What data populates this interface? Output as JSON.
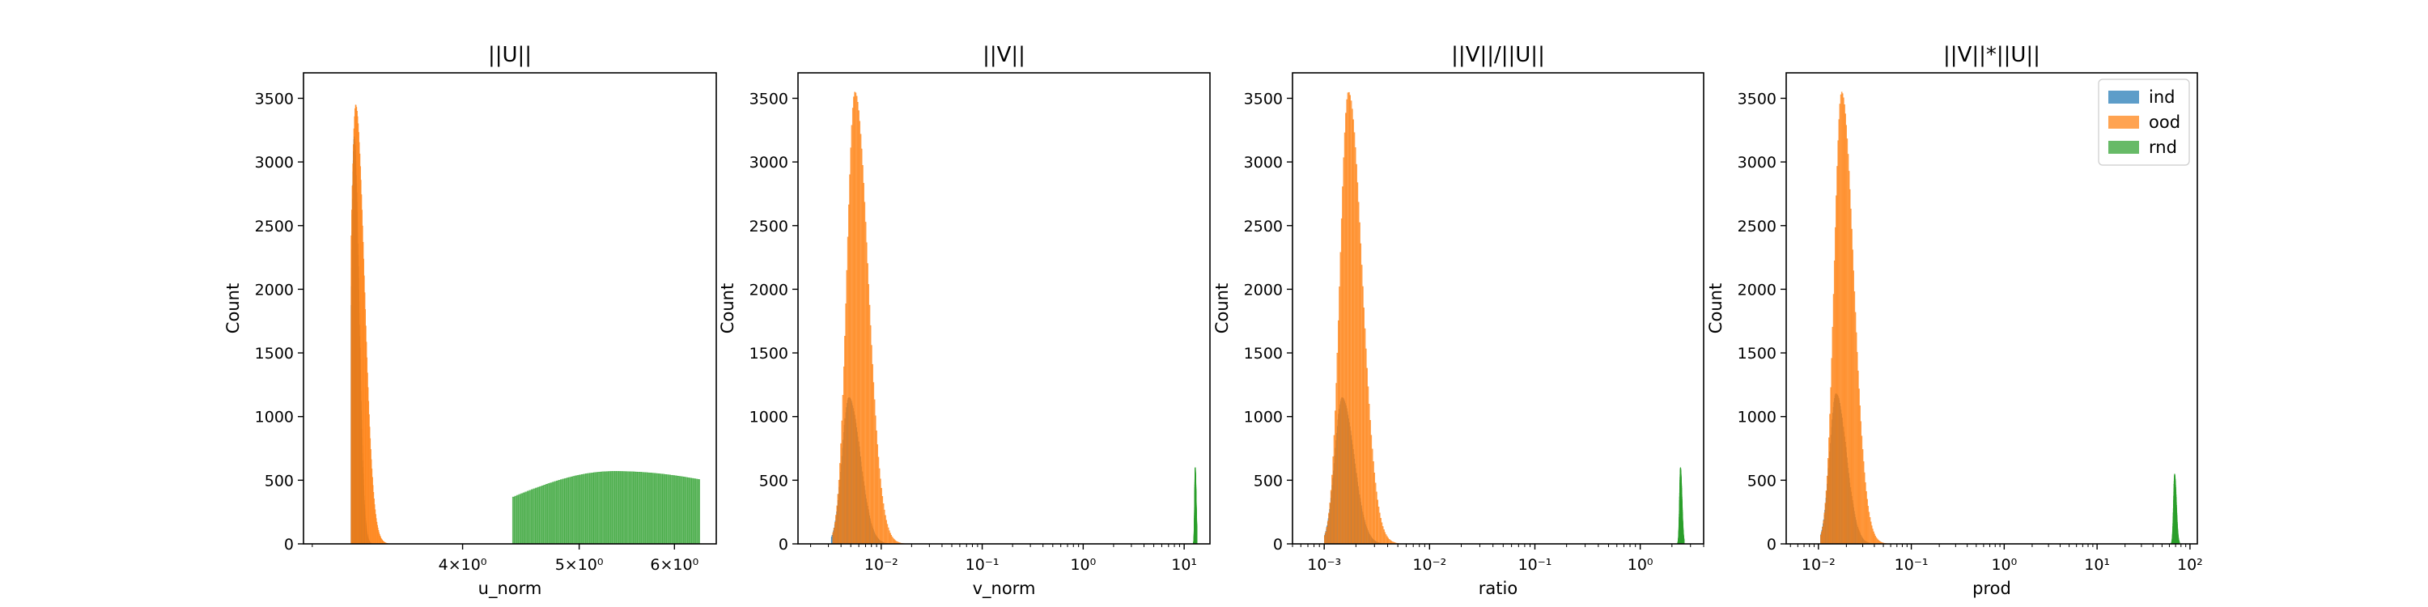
{
  "colors": {
    "ind": "#1f77b4",
    "ood": "#ff7f0e",
    "rnd": "#2ca02c"
  },
  "legend": {
    "placement": "upper right",
    "entries": [
      "ind",
      "ood",
      "rnd"
    ]
  },
  "chart_data": [
    {
      "type": "histogram",
      "title": "||U||",
      "xlabel": "u_norm",
      "ylabel": "Count",
      "xscale": "log",
      "xlim": [
        2.95,
        6.5
      ],
      "ylim": [
        0,
        3700
      ],
      "xticks": [
        {
          "value": 4,
          "label": "4×10⁰"
        },
        {
          "value": 5,
          "label": "5×10⁰"
        },
        {
          "value": 6,
          "label": "6×10⁰"
        }
      ],
      "yticks": [
        0,
        500,
        1000,
        1500,
        2000,
        2500,
        3000,
        3500
      ],
      "series": [
        {
          "name": "ind",
          "peak_x": 3.25,
          "peak_count": 3200,
          "sigma_log": 0.0025,
          "min_x": 3.23,
          "max_x": 3.36
        },
        {
          "name": "ood",
          "peak_x": 3.26,
          "peak_count": 3450,
          "sigma_log": 0.0045,
          "min_x": 3.23,
          "max_x": 3.55
        },
        {
          "name": "rnd",
          "peak_x": 5.35,
          "peak_count": 570,
          "sigma_log": 0.09,
          "min_x": 4.4,
          "max_x": 6.3
        }
      ]
    },
    {
      "type": "histogram",
      "title": "||V||",
      "xlabel": "v_norm",
      "ylabel": "Count",
      "xscale": "log",
      "xlim": [
        0.0015,
        18
      ],
      "ylim": [
        0,
        3700
      ],
      "xticks": [
        {
          "value": 0.01,
          "label": "10⁻²"
        },
        {
          "value": 0.1,
          "label": "10⁻¹"
        },
        {
          "value": 1,
          "label": "10⁰"
        },
        {
          "value": 10,
          "label": "10¹"
        }
      ],
      "yticks": [
        0,
        500,
        1000,
        1500,
        2000,
        2500,
        3000,
        3500
      ],
      "series": [
        {
          "name": "ind",
          "peak_x": 0.0048,
          "peak_count": 1150,
          "sigma_log": 0.07,
          "min_x": 0.0032,
          "max_x": 0.012
        },
        {
          "name": "ood",
          "peak_x": 0.0055,
          "peak_count": 3550,
          "sigma_log": 0.08,
          "min_x": 0.0033,
          "max_x": 0.025
        },
        {
          "name": "rnd",
          "peak_x": 12.8,
          "peak_count": 600,
          "sigma_log": 0.006,
          "min_x": 12.3,
          "max_x": 13.3
        }
      ]
    },
    {
      "type": "histogram",
      "title": "||V||/||U||",
      "xlabel": "ratio",
      "ylabel": "Count",
      "xscale": "log",
      "xlim": [
        0.0005,
        4
      ],
      "ylim": [
        0,
        3700
      ],
      "xticks": [
        {
          "value": 0.001,
          "label": "10⁻³"
        },
        {
          "value": 0.01,
          "label": "10⁻²"
        },
        {
          "value": 0.1,
          "label": "10⁻¹"
        },
        {
          "value": 1,
          "label": "10⁰"
        }
      ],
      "yticks": [
        0,
        500,
        1000,
        1500,
        2000,
        2500,
        3000,
        3500
      ],
      "series": [
        {
          "name": "ind",
          "peak_x": 0.00148,
          "peak_count": 1150,
          "sigma_log": 0.07,
          "min_x": 0.001,
          "max_x": 0.0035
        },
        {
          "name": "ood",
          "peak_x": 0.0017,
          "peak_count": 3550,
          "sigma_log": 0.08,
          "min_x": 0.001,
          "max_x": 0.008
        },
        {
          "name": "rnd",
          "peak_x": 2.4,
          "peak_count": 600,
          "sigma_log": 0.009,
          "min_x": 2.25,
          "max_x": 2.6
        }
      ]
    },
    {
      "type": "histogram",
      "title": "||V||*||U||",
      "xlabel": "prod",
      "ylabel": "Count",
      "xscale": "log",
      "xlim": [
        0.0045,
        120
      ],
      "ylim": [
        0,
        3700
      ],
      "xticks": [
        {
          "value": 0.01,
          "label": "10⁻²"
        },
        {
          "value": 0.1,
          "label": "10⁻¹"
        },
        {
          "value": 1,
          "label": "10⁰"
        },
        {
          "value": 10,
          "label": "10¹"
        },
        {
          "value": 100,
          "label": "10²"
        }
      ],
      "yticks": [
        0,
        500,
        1000,
        1500,
        2000,
        2500,
        3000,
        3500
      ],
      "series": [
        {
          "name": "ind",
          "peak_x": 0.0155,
          "peak_count": 1180,
          "sigma_log": 0.07,
          "min_x": 0.0105,
          "max_x": 0.04
        },
        {
          "name": "ood",
          "peak_x": 0.0178,
          "peak_count": 3550,
          "sigma_log": 0.08,
          "min_x": 0.0105,
          "max_x": 0.08
        },
        {
          "name": "rnd",
          "peak_x": 68,
          "peak_count": 550,
          "sigma_log": 0.012,
          "min_x": 60,
          "max_x": 77
        }
      ]
    }
  ]
}
